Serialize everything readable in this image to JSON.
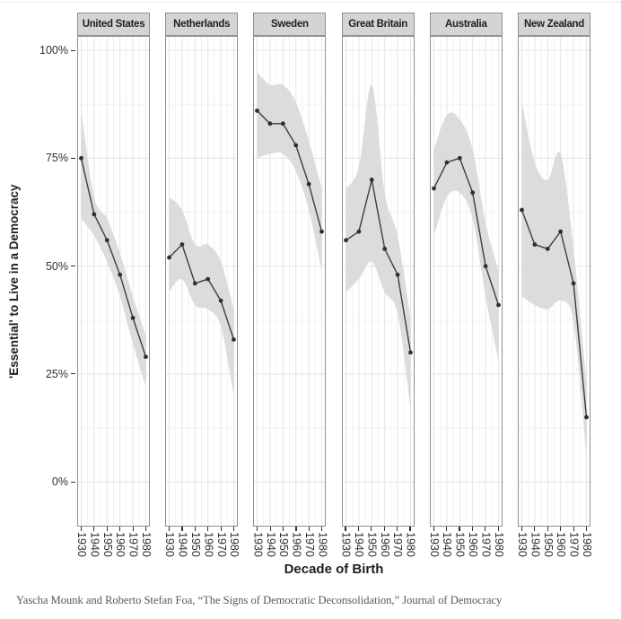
{
  "page": {
    "background": "#ffffff",
    "top_border_color": "#e9e9e9"
  },
  "caption": "Yascha Mounk and Roberto Stefan Foa, “The Signs of Democratic Deconsolidation,” Journal of Democracy",
  "chart_data": {
    "type": "line",
    "layout": "faceted small multiples, 6 panels in one row, shared y axis",
    "title": "",
    "xlabel": "Decade of Birth",
    "ylabel": "'Essential' to Live in a Democracy",
    "x": [
      1930,
      1940,
      1950,
      1960,
      1970,
      1980
    ],
    "x_tick_labels": [
      "1930",
      "1940",
      "1950",
      "1960",
      "1970",
      "1980"
    ],
    "y_ticks": [
      {
        "label": "100%",
        "value": 100
      },
      {
        "label": "75%",
        "value": 75
      },
      {
        "label": "50%",
        "value": 50
      },
      {
        "label": "25%",
        "value": 25
      },
      {
        "label": "0%",
        "value": 0
      }
    ],
    "ylim": [
      0,
      100
    ],
    "grid": "faint major and minor gridlines on white panels",
    "legend": "none",
    "marker": "filled dark circle on solid dark line with gray confidence ribbon",
    "series": [
      {
        "name": "United States",
        "values": [
          75,
          62,
          56,
          48,
          38,
          29
        ],
        "band_upper": [
          86,
          66,
          61,
          53,
          43,
          34
        ],
        "band_lower": [
          61,
          57,
          51,
          43,
          32,
          22
        ]
      },
      {
        "name": "Netherlands",
        "values": [
          52,
          55,
          46,
          47,
          42,
          33
        ],
        "band_upper": [
          66,
          63,
          55,
          55,
          51,
          40
        ],
        "band_lower": [
          44,
          47,
          41,
          40,
          36,
          20
        ]
      },
      {
        "name": "Sweden",
        "values": [
          86,
          83,
          83,
          78,
          69,
          58
        ],
        "band_upper": [
          95,
          92,
          92,
          88,
          79,
          68
        ],
        "band_lower": [
          75,
          76,
          76,
          72,
          63,
          49
        ]
      },
      {
        "name": "Great Britain",
        "values": [
          56,
          58,
          70,
          54,
          48,
          30
        ],
        "band_upper": [
          68,
          73,
          92,
          67,
          57,
          38
        ],
        "band_lower": [
          44,
          47,
          51,
          44,
          39,
          17
        ]
      },
      {
        "name": "Australia",
        "values": [
          68,
          74,
          75,
          67,
          50,
          41
        ],
        "band_upper": [
          77,
          85,
          84,
          77,
          60,
          49
        ],
        "band_lower": [
          57,
          66,
          67,
          61,
          43,
          28
        ]
      },
      {
        "name": "New Zealand",
        "values": [
          63,
          55,
          54,
          58,
          46,
          15
        ],
        "band_upper": [
          88,
          74,
          70,
          76,
          54,
          23
        ],
        "band_lower": [
          43,
          41,
          40,
          42,
          37,
          6
        ]
      }
    ],
    "colors": {
      "line": "#3d3d3d",
      "point": "#2f2f2f",
      "band": "#d8d8d8",
      "strip_bg": "#d4d4d4",
      "strip_border": "#8f8f8f",
      "panel_border": "#8f8f8f",
      "grid_major": "#e4e4e4",
      "grid_minor": "#f2f2f2",
      "axis_text": "#303030",
      "title_text": "#1f1f1f",
      "caption_text": "#575757"
    }
  }
}
